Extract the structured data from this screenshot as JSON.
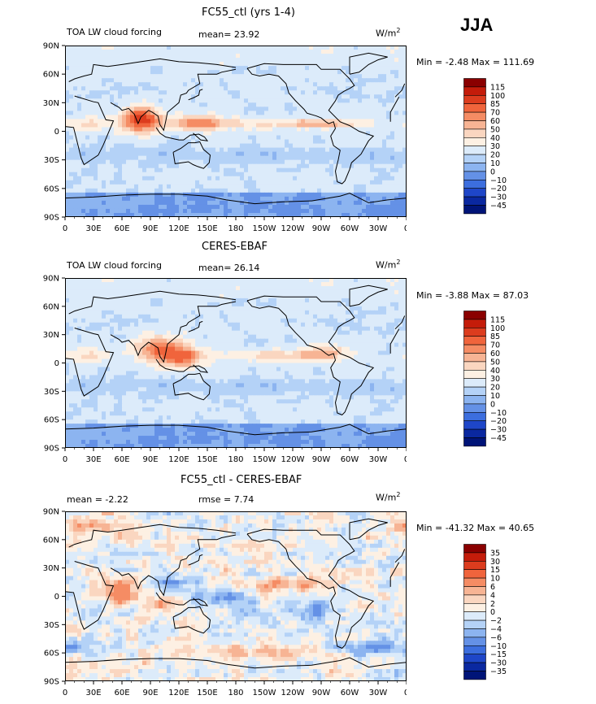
{
  "season": "JJA",
  "units": "W/m",
  "units_sup": "2",
  "lat_ticks": [
    "90N",
    "60N",
    "30N",
    "0",
    "30S",
    "60S",
    "90S"
  ],
  "lon_ticks": [
    "0",
    "30E",
    "60E",
    "90E",
    "120E",
    "150E",
    "180",
    "150W",
    "120W",
    "90W",
    "60W",
    "30W",
    "0"
  ],
  "panels": [
    {
      "title": "FC55_ctl (yrs 1-4)",
      "left_label": "TOA LW cloud forcing",
      "stat_text": "mean=  23.92",
      "minmax_text": "Min =  -2.48 Max = 111.69",
      "stats": {
        "mean": 23.92,
        "min": -2.48,
        "max": 111.69
      },
      "colorbar": {
        "labels": [
          "115",
          "100",
          "85",
          "70",
          "60",
          "50",
          "40",
          "30",
          "20",
          "10",
          "0",
          "−10",
          "−20",
          "−30",
          "−45"
        ],
        "colors": [
          "#8a0000",
          "#c41c0a",
          "#dc3c1e",
          "#f0643c",
          "#f58c64",
          "#f7b494",
          "#fad6c0",
          "#fdf0e3",
          "#dcebfa",
          "#b4d2f7",
          "#8cb4f0",
          "#6491e6",
          "#3c6ede",
          "#1e46c8",
          "#0a28a0",
          "#001478"
        ]
      },
      "field_scheme": "model"
    },
    {
      "title": "CERES-EBAF",
      "left_label": "TOA LW cloud forcing",
      "stat_text": "mean=  26.14",
      "minmax_text": "Min =  -3.88 Max =  87.03",
      "stats": {
        "mean": 26.14,
        "min": -3.88,
        "max": 87.03
      },
      "colorbar": {
        "labels": [
          "115",
          "100",
          "85",
          "70",
          "60",
          "50",
          "40",
          "30",
          "20",
          "10",
          "0",
          "−10",
          "−20",
          "−30",
          "−45"
        ],
        "colors": [
          "#8a0000",
          "#c41c0a",
          "#dc3c1e",
          "#f0643c",
          "#f58c64",
          "#f7b494",
          "#fad6c0",
          "#fdf0e3",
          "#dcebfa",
          "#b4d2f7",
          "#8cb4f0",
          "#6491e6",
          "#3c6ede",
          "#1e46c8",
          "#0a28a0",
          "#001478"
        ]
      },
      "field_scheme": "obs"
    },
    {
      "title": "FC55_ctl - CERES-EBAF",
      "left_label": "mean =  -2.22",
      "stat_text": "rmse =   7.74",
      "minmax_text": "Min = -41.32 Max =  40.65",
      "stats": {
        "mean": -2.22,
        "rmse": 7.74,
        "min": -41.32,
        "max": 40.65
      },
      "colorbar": {
        "labels": [
          "35",
          "30",
          "15",
          "10",
          "6",
          "4",
          "2",
          "0",
          "−2",
          "−4",
          "−6",
          "−10",
          "−15",
          "−30",
          "−35"
        ],
        "colors": [
          "#8a0000",
          "#c41c0a",
          "#dc3c1e",
          "#f0643c",
          "#f58c64",
          "#f7b494",
          "#fad6c0",
          "#fdf0e3",
          "#dcebfa",
          "#b4d2f7",
          "#8cb4f0",
          "#6491e6",
          "#3c6ede",
          "#1e46c8",
          "#0a28a0",
          "#001478"
        ]
      },
      "field_scheme": "diff"
    }
  ]
}
